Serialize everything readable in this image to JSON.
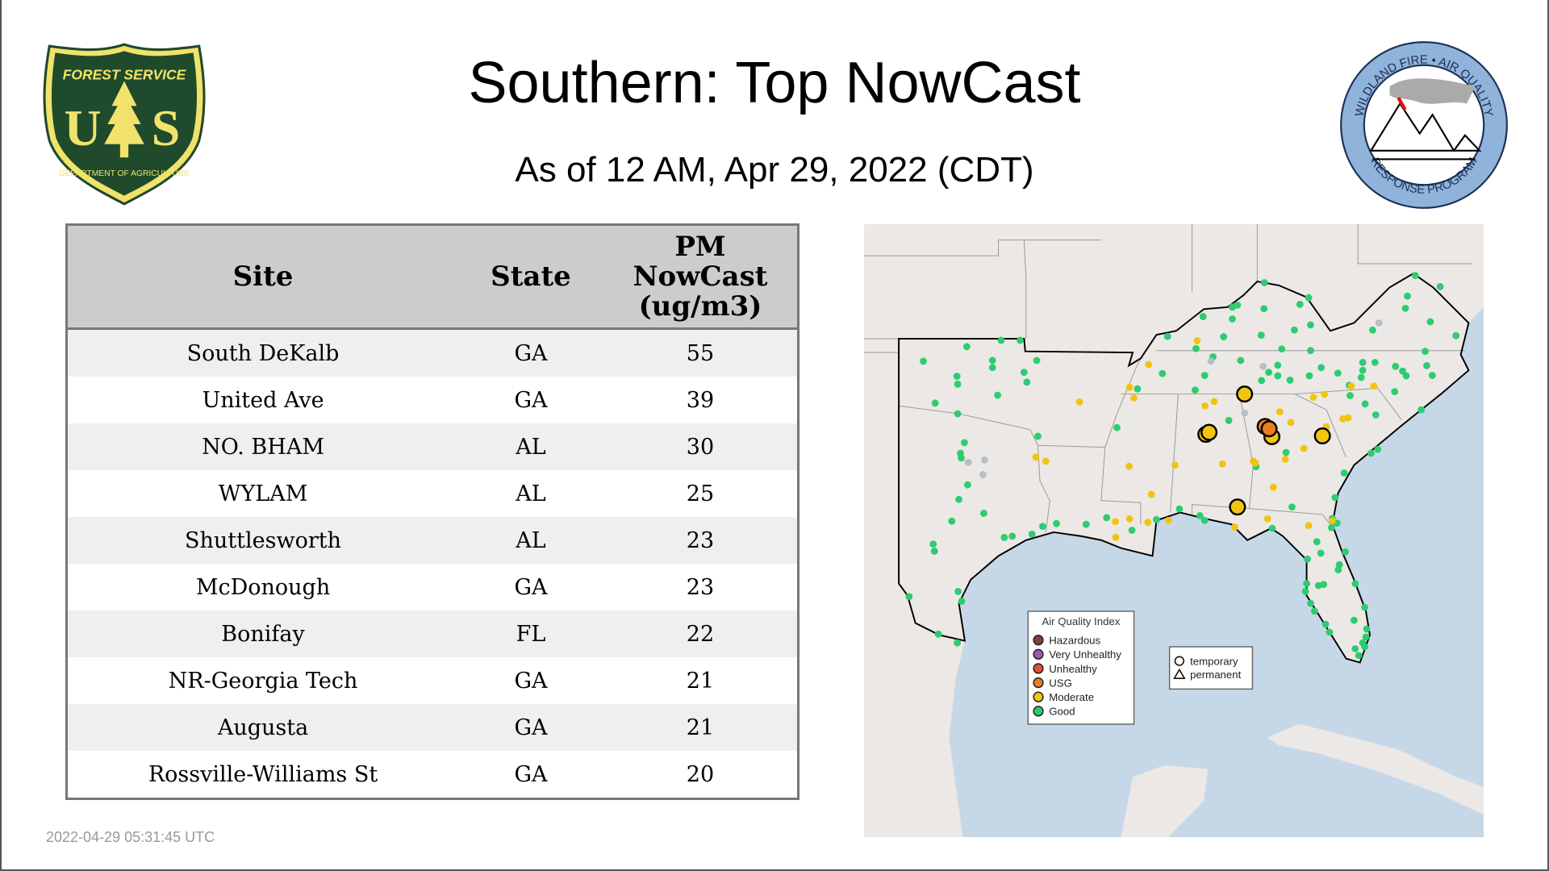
{
  "header": {
    "title": "Southern: Top NowCast",
    "subtitle": "As of 12 AM, Apr 29, 2022 (CDT)"
  },
  "logos": {
    "usfs": {
      "top_text": "FOREST SERVICE",
      "letters": "U S",
      "bottom_text": "DEPARTMENT OF AGRICULTURE",
      "colors": {
        "green": "#1f4a2c",
        "gold": "#f1e26b"
      }
    },
    "wfaq": {
      "top_text": "WILDLAND FIRE • AIR QUALITY",
      "bottom_text": "RESPONSE PROGRAM",
      "colors": {
        "ring": "#8fb3da",
        "text": "#1d2f55"
      }
    }
  },
  "table": {
    "columns": [
      "Site",
      "State",
      "PM NowCast (ug/m3)"
    ],
    "column_lines": [
      "PM",
      "NowCast",
      "(ug/m3)"
    ],
    "rows": [
      {
        "site": "South DeKalb",
        "state": "GA",
        "value": "55"
      },
      {
        "site": "United Ave",
        "state": "GA",
        "value": "39"
      },
      {
        "site": "NO. BHAM",
        "state": "AL",
        "value": "30"
      },
      {
        "site": "WYLAM",
        "state": "AL",
        "value": "25"
      },
      {
        "site": "Shuttlesworth",
        "state": "AL",
        "value": "23"
      },
      {
        "site": "McDonough",
        "state": "GA",
        "value": "23"
      },
      {
        "site": "Bonifay",
        "state": "FL",
        "value": "22"
      },
      {
        "site": "NR-Georgia Tech",
        "state": "GA",
        "value": "21"
      },
      {
        "site": "Augusta",
        "state": "GA",
        "value": "21"
      },
      {
        "site": "Rossville-Williams St",
        "state": "GA",
        "value": "20"
      }
    ]
  },
  "map": {
    "aqi_legend": {
      "title": "Air Quality Index",
      "items": [
        {
          "label": "Hazardous",
          "color": "#8b3a3a"
        },
        {
          "label": "Very Unhealthy",
          "color": "#9b59b6"
        },
        {
          "label": "Unhealthy",
          "color": "#e74c3c"
        },
        {
          "label": "USG",
          "color": "#e67e22"
        },
        {
          "label": "Moderate",
          "color": "#f1c40f"
        },
        {
          "label": "Good",
          "color": "#2ecc71"
        }
      ]
    },
    "shape_legend": {
      "items": [
        {
          "label": "temporary",
          "shape": "circle"
        },
        {
          "label": "permanent",
          "shape": "triangle"
        }
      ]
    },
    "colors": {
      "water": "#c6d8e7",
      "land": "#ece8e6",
      "no_data": "#b9bfc6"
    }
  },
  "footer": {
    "timestamp": "2022-04-29 05:31:45 UTC"
  }
}
